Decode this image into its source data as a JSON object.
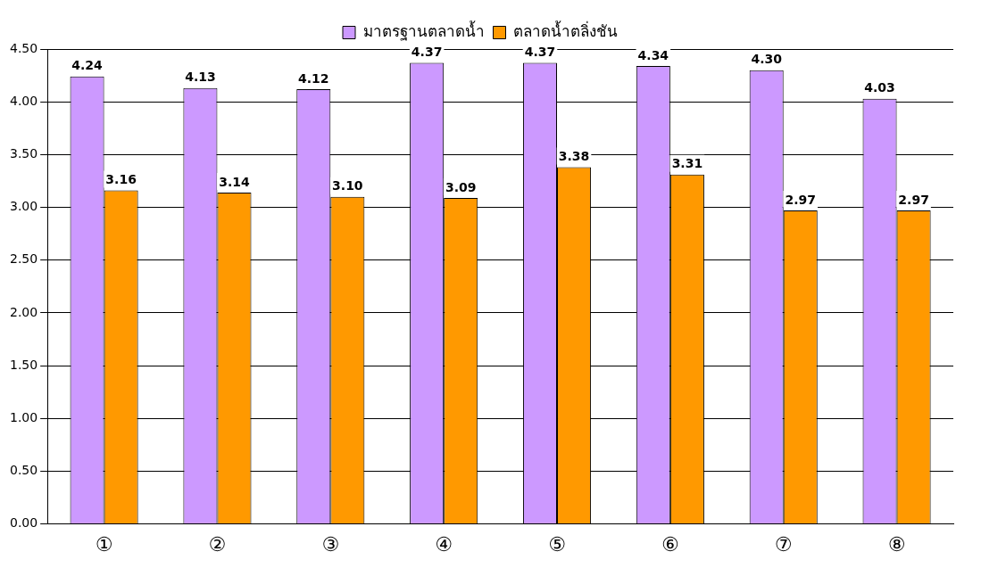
{
  "chart_data": {
    "type": "bar",
    "categories": [
      "①",
      "②",
      "③",
      "④",
      "⑤",
      "⑥",
      "⑦",
      "⑧"
    ],
    "series": [
      {
        "name": "มาตรฐานตลาดน้ำ",
        "color": "#cc99ff",
        "values": [
          4.24,
          4.13,
          4.12,
          4.37,
          4.37,
          4.34,
          4.3,
          4.03
        ],
        "value_labels": [
          "4.24",
          "4.13",
          "4.12",
          "4.37",
          "4.37",
          "4.34",
          "4.30",
          "4.03"
        ]
      },
      {
        "name": "ตลาดน้ำตลิ่งชัน",
        "color": "#ff9900",
        "values": [
          3.16,
          3.14,
          3.1,
          3.09,
          3.38,
          3.31,
          2.97,
          2.97
        ],
        "value_labels": [
          "3.16",
          "3.14",
          "3.10",
          "3.09",
          "3.38",
          "3.31",
          "2.97",
          "2.97"
        ]
      }
    ],
    "ylim": [
      0,
      4.5
    ],
    "yticks": [
      {
        "value": 0,
        "label": "0.00"
      },
      {
        "value": 0.5,
        "label": "0.50"
      },
      {
        "value": 1,
        "label": "1.00"
      },
      {
        "value": 1.5,
        "label": "1.50"
      },
      {
        "value": 2,
        "label": "2.00"
      },
      {
        "value": 2.5,
        "label": "2.50"
      },
      {
        "value": 3,
        "label": "3.00"
      },
      {
        "value": 3.5,
        "label": "3.50"
      },
      {
        "value": 4,
        "label": "4.00"
      },
      {
        "value": 4.5,
        "label": "4.50"
      }
    ],
    "grid": "y",
    "legend": "top"
  }
}
